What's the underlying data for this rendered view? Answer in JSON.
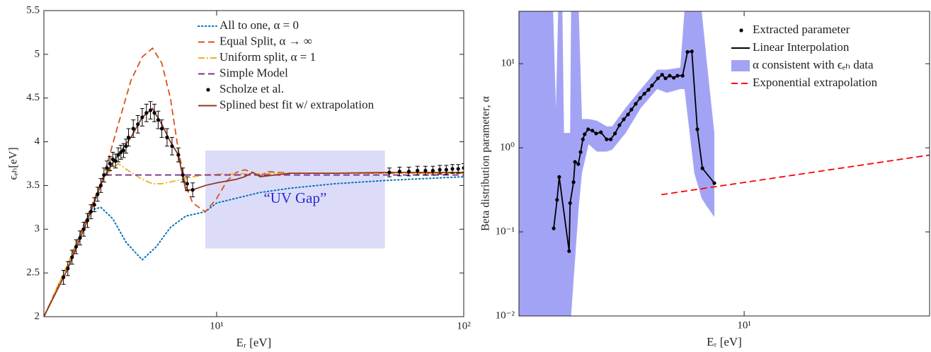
{
  "chart_data": [
    {
      "type": "line",
      "x_label": "Eᵣ [eV]",
      "y_label": "ϵₑₕ[eV]",
      "xscale": "log",
      "xlim": [
        2,
        100
      ],
      "xticks": [
        {
          "value": 10,
          "label": "10¹"
        },
        {
          "value": 100,
          "label": "10²"
        }
      ],
      "ylim": [
        2,
        5.5
      ],
      "yticks": [
        2,
        2.5,
        3,
        3.5,
        4,
        4.5,
        5,
        5.5
      ],
      "legend": "upper right",
      "annotations": [
        {
          "text": "“UV Gap”",
          "x": [
            9,
            48
          ],
          "y": [
            2.78,
            3.9
          ],
          "fill": "#dcdcf8",
          "color": "#2a2ad8"
        }
      ],
      "series": [
        {
          "name": "All to one, α = 0",
          "color": "#0072bd",
          "style": "dotted",
          "x": [
            2,
            2.5,
            2.9,
            3.1,
            3.4,
            3.8,
            4.3,
            5,
            5.7,
            6.5,
            7.5,
            9,
            10,
            15,
            20,
            30,
            50,
            100
          ],
          "values": [
            2,
            2.55,
            3.05,
            3.22,
            3.25,
            3.12,
            2.85,
            2.65,
            2.8,
            3.02,
            3.15,
            3.2,
            3.3,
            3.42,
            3.47,
            3.52,
            3.56,
            3.6
          ]
        },
        {
          "name": "Equal Split, α → ∞",
          "color": "#d95319",
          "style": "dashed",
          "x": [
            2,
            2.5,
            3,
            3.5,
            4,
            4.5,
            5,
            5.5,
            6,
            6.5,
            7,
            7.5,
            8,
            9,
            10,
            11,
            12,
            13,
            14,
            15,
            16,
            20,
            100
          ],
          "values": [
            2,
            2.6,
            3.15,
            3.62,
            4.2,
            4.7,
            4.97,
            5.07,
            4.9,
            4.5,
            3.9,
            3.5,
            3.3,
            3.2,
            3.35,
            3.55,
            3.65,
            3.68,
            3.65,
            3.6,
            3.66,
            3.64,
            3.64
          ]
        },
        {
          "name": "Uniform split, α = 1",
          "color": "#edb120",
          "style": "dashdot",
          "x": [
            2,
            3,
            3.5,
            4,
            4.5,
            5,
            5.5,
            6,
            7,
            8,
            9,
            10,
            20,
            100
          ],
          "values": [
            2,
            3.1,
            3.6,
            3.75,
            3.65,
            3.57,
            3.52,
            3.52,
            3.56,
            3.6,
            3.62,
            3.63,
            3.64,
            3.64
          ]
        },
        {
          "name": "Simple Model",
          "color": "#7e2f8e",
          "style": "dashed",
          "x": [
            3.55,
            100
          ],
          "values": [
            3.62,
            3.62
          ]
        },
        {
          "name": "Scholze et al.",
          "color": "#000000",
          "style": "points",
          "x": [
            2.4,
            2.5,
            2.6,
            2.7,
            2.8,
            2.9,
            3.0,
            3.1,
            3.2,
            3.3,
            3.4,
            3.5,
            3.6,
            3.7,
            3.8,
            3.9,
            4.0,
            4.1,
            4.2,
            4.3,
            4.4,
            4.6,
            4.8,
            5.0,
            5.2,
            5.4,
            5.6,
            5.8,
            6.0,
            6.3,
            6.6,
            7.0,
            7.3,
            7.6,
            8.0,
            50,
            55,
            60,
            65,
            70,
            75,
            80,
            85,
            90,
            95,
            100
          ],
          "values": [
            2.45,
            2.55,
            2.68,
            2.8,
            2.9,
            3.0,
            3.1,
            3.2,
            3.28,
            3.4,
            3.5,
            3.62,
            3.7,
            3.75,
            3.8,
            3.78,
            3.85,
            3.88,
            3.9,
            3.95,
            4.05,
            4.15,
            4.2,
            4.28,
            4.33,
            4.36,
            4.33,
            4.25,
            4.15,
            4.05,
            3.95,
            3.85,
            3.62,
            3.52,
            3.45,
            3.65,
            3.66,
            3.66,
            3.67,
            3.67,
            3.67,
            3.68,
            3.68,
            3.69,
            3.69,
            3.7
          ],
          "errors": [
            0.08,
            0.08,
            0.08,
            0.08,
            0.08,
            0.08,
            0.08,
            0.08,
            0.08,
            0.08,
            0.08,
            0.08,
            0.08,
            0.08,
            0.08,
            0.08,
            0.08,
            0.08,
            0.08,
            0.08,
            0.1,
            0.1,
            0.1,
            0.1,
            0.1,
            0.1,
            0.1,
            0.1,
            0.1,
            0.1,
            0.1,
            0.08,
            0.08,
            0.08,
            0.08,
            0.05,
            0.05,
            0.05,
            0.05,
            0.05,
            0.05,
            0.05,
            0.05,
            0.05,
            0.05,
            0.05
          ]
        },
        {
          "name": "Splined best fit w/ extrapolation",
          "color": "#8e3b26",
          "style": "solid",
          "x": [
            2,
            2.5,
            3,
            3.5,
            4,
            4.5,
            5,
            5.5,
            6,
            6.5,
            7,
            7.3,
            7.5,
            8,
            9,
            10,
            12,
            13,
            14,
            15,
            20,
            30,
            50,
            100
          ],
          "values": [
            2,
            2.55,
            3.1,
            3.6,
            3.85,
            4.05,
            4.28,
            4.38,
            4.2,
            4.0,
            3.85,
            3.6,
            3.45,
            3.45,
            3.5,
            3.53,
            3.57,
            3.6,
            3.65,
            3.6,
            3.64,
            3.64,
            3.65,
            3.65
          ]
        }
      ]
    },
    {
      "type": "line",
      "x_label": "Eᵣ [eV]",
      "y_label": "Beta distribution parameter, α",
      "xscale": "log",
      "xlim": [
        1.75,
        42
      ],
      "xticks": [
        {
          "value": 10,
          "label": "10¹"
        }
      ],
      "yscale": "log",
      "ylim": [
        0.01,
        42
      ],
      "yticks": [
        {
          "value": 0.01,
          "label": "10⁻²"
        },
        {
          "value": 0.1,
          "label": "10⁻¹"
        },
        {
          "value": 1,
          "label": "10⁰"
        },
        {
          "value": 10,
          "label": "10¹"
        }
      ],
      "legend": "upper right",
      "series": [
        {
          "name": "Extracted parameter",
          "color": "#000000",
          "style": "points",
          "x": [
            2.29,
            2.35,
            2.39,
            2.58,
            2.6,
            2.67,
            2.7,
            2.77,
            2.82,
            2.87,
            2.91,
            2.99,
            3.09,
            3.18,
            3.3,
            3.45,
            3.56,
            3.68,
            3.81,
            3.94,
            4.07,
            4.18,
            4.32,
            4.47,
            4.62,
            4.77,
            4.9,
            5.13,
            5.3,
            5.44,
            5.62,
            5.8,
            5.97,
            6.21,
            6.45,
            6.67,
            6.96,
            7.24,
            7.94
          ],
          "values": [
            0.11,
            0.24,
            0.45,
            0.059,
            0.22,
            0.39,
            0.68,
            0.64,
            0.89,
            1.26,
            1.45,
            1.66,
            1.6,
            1.48,
            1.53,
            1.26,
            1.26,
            1.48,
            1.86,
            2.18,
            2.49,
            2.85,
            3.33,
            3.9,
            4.4,
            4.9,
            5.5,
            6.7,
            7.4,
            6.7,
            7.2,
            6.8,
            7.2,
            7.2,
            13.8,
            14.0,
            1.66,
            0.57,
            0.38
          ]
        },
        {
          "name": "Linear Interpolation",
          "color": "#000000",
          "style": "solid"
        },
        {
          "name": "α consistent with ϵₑₕ data",
          "color": "#a3a3f5",
          "style": "band",
          "x": [
            1.75,
            2.28,
            2.33,
            2.37,
            2.45,
            2.48,
            2.6,
            2.62,
            2.78,
            2.85,
            3.0,
            3.2,
            3.45,
            3.6,
            4.0,
            4.5,
            5.1,
            5.5,
            6.1,
            6.3,
            6.8,
            7.2,
            7.5,
            7.94
          ],
          "upper": [
            42,
            42,
            3,
            42,
            42,
            1.5,
            1.5,
            42,
            42,
            2.2,
            2.2,
            2.1,
            1.8,
            1.8,
            3,
            5,
            8.5,
            8.5,
            9,
            42,
            42,
            42,
            10,
            1.5
          ],
          "lower": [
            0.01,
            0.01,
            0.01,
            0.01,
            0.01,
            0.01,
            0.01,
            0.01,
            0.2,
            0.5,
            1.1,
            0.9,
            0.9,
            0.95,
            1.5,
            3,
            5,
            4.5,
            5,
            5,
            0.5,
            0.25,
            0.2,
            0.15
          ]
        },
        {
          "name": "Exponential extrapolation",
          "color": "#ff0000",
          "style": "dashed",
          "x": [
            5.27,
            42
          ],
          "values": [
            0.277,
            0.82
          ]
        }
      ]
    }
  ]
}
